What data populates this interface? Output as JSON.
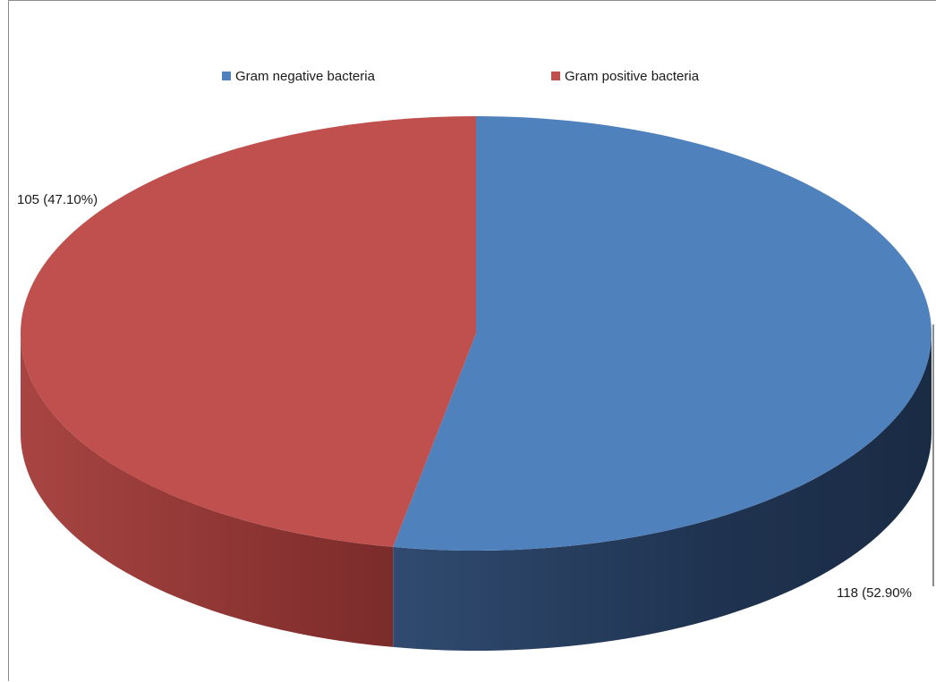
{
  "chart_data": {
    "type": "pie",
    "title": "",
    "legend_position": "top",
    "slices": [
      {
        "name": "Gram negative bacteria",
        "value": 118,
        "percent": 52.9,
        "label": "118 (52.90%",
        "color": "#4f81bd",
        "side_color": "#1f3350"
      },
      {
        "name": "Gram positive bacteria",
        "value": 105,
        "percent": 47.1,
        "label": "105 (47.10%)",
        "color": "#c0504d",
        "side_color": "#7b2b2a"
      }
    ]
  },
  "legend": {
    "items": [
      {
        "label": "Gram negative bacteria",
        "color": "#4f81bd"
      },
      {
        "label": "Gram positive bacteria",
        "color": "#c0504d"
      }
    ]
  }
}
